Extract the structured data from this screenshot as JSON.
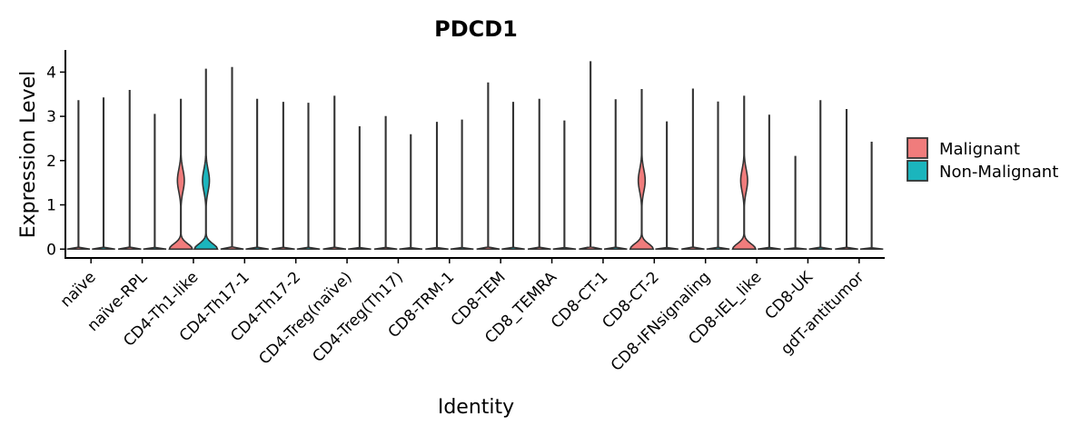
{
  "chart_data": {
    "type": "violin",
    "title": "PDCD1",
    "xlabel": "Identity",
    "ylabel": "Expression Level",
    "ylim": [
      -0.2,
      4.5
    ],
    "yticks": [
      0,
      1,
      2,
      3,
      4
    ],
    "grid": false,
    "legend_position": "right",
    "categories": [
      "naïve",
      "naïve-RPL",
      "CD4-Th1-like",
      "CD4-Th17-1",
      "CD4-Th17-2",
      "CD4-Treg(naïve)",
      "CD4-Treg(Th17)",
      "CD8-TRM-1",
      "CD8-TEM",
      "CD8_TEMRA",
      "CD8-CT-1",
      "CD8-CT-2",
      "CD8-IFNsignaling",
      "CD8-IEL_like",
      "CD8-UK",
      "gdT-antitumor"
    ],
    "series": [
      {
        "name": "Malignant",
        "color": "#F07C7C",
        "max": [
          3.35,
          3.58,
          3.38,
          4.1,
          3.31,
          3.45,
          2.99,
          2.86,
          3.75,
          3.38,
          4.23,
          3.6,
          3.61,
          3.45,
          2.09,
          3.15
        ],
        "has_body": [
          false,
          false,
          true,
          false,
          false,
          false,
          false,
          false,
          false,
          false,
          false,
          true,
          false,
          true,
          false,
          false
        ]
      },
      {
        "name": "Non-Malignant",
        "color": "#1BB5BD",
        "max": [
          3.41,
          3.04,
          4.06,
          3.38,
          3.29,
          2.76,
          2.58,
          2.91,
          3.31,
          2.89,
          3.37,
          2.87,
          3.32,
          3.02,
          3.35,
          2.41
        ],
        "has_body": [
          false,
          false,
          true,
          false,
          false,
          false,
          false,
          false,
          false,
          false,
          false,
          false,
          false,
          false,
          false,
          false
        ]
      }
    ]
  }
}
